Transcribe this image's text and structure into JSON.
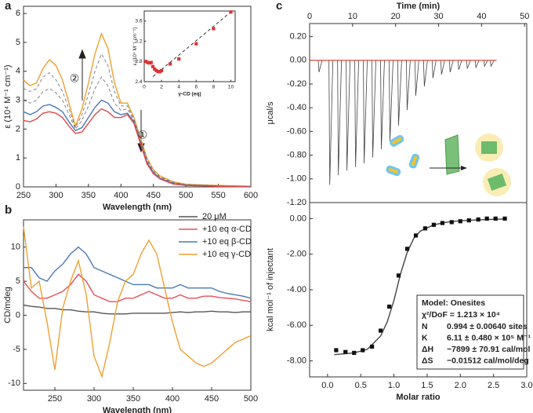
{
  "chart_data": [
    {
      "type": "line",
      "panel_label": "a",
      "xlabel": "Wavelength (nm)",
      "ylabel": "ε (10⁴ M⁻¹ cm⁻¹)",
      "xlim": [
        250,
        600
      ],
      "xticks": [
        250,
        300,
        350,
        400,
        450,
        500,
        550,
        600
      ],
      "ylim": [
        0,
        6.25
      ],
      "yticks": [
        0,
        1,
        2,
        3,
        4,
        5,
        6
      ],
      "annotations": [
        "②",
        "①"
      ],
      "x": [
        250,
        260,
        270,
        280,
        290,
        300,
        310,
        320,
        330,
        340,
        350,
        360,
        370,
        380,
        390,
        400,
        410,
        420,
        430,
        440,
        450,
        460,
        480,
        500,
        550,
        600
      ],
      "series": [
        {
          "color": "#f0a030",
          "dash": false,
          "values": [
            3.7,
            3.5,
            3.6,
            4.1,
            4.4,
            4.2,
            3.7,
            2.9,
            2.1,
            2.7,
            3.6,
            4.6,
            5.3,
            4.8,
            3.6,
            2.9,
            2.9,
            2.4,
            1.7,
            1.0,
            0.6,
            0.38,
            0.18,
            0.09,
            0.05,
            0.02
          ]
        },
        {
          "color": "#777777",
          "dash": true,
          "values": [
            3.4,
            3.3,
            3.4,
            3.8,
            3.95,
            3.7,
            3.3,
            2.7,
            2.05,
            2.5,
            3.2,
            4.0,
            4.6,
            4.2,
            3.3,
            2.8,
            2.8,
            2.35,
            1.65,
            0.95,
            0.55,
            0.35,
            0.16,
            0.08,
            0.04,
            0.01
          ]
        },
        {
          "color": "#777777",
          "dash": true,
          "values": [
            3.0,
            2.9,
            3.0,
            3.3,
            3.4,
            3.25,
            3.0,
            2.5,
            2.0,
            2.3,
            2.8,
            3.4,
            3.8,
            3.5,
            2.9,
            2.65,
            2.7,
            2.3,
            1.6,
            0.9,
            0.5,
            0.32,
            0.14,
            0.07,
            0.03,
            0.01
          ]
        },
        {
          "color": "#4a78b8",
          "dash": false,
          "values": [
            2.6,
            2.5,
            2.6,
            2.8,
            2.85,
            2.75,
            2.6,
            2.25,
            1.95,
            2.05,
            2.4,
            2.75,
            3.0,
            2.9,
            2.6,
            2.5,
            2.55,
            2.25,
            1.55,
            0.85,
            0.5,
            0.3,
            0.12,
            0.06,
            0.03,
            0.01
          ]
        },
        {
          "color": "#e04848",
          "dash": false,
          "values": [
            2.3,
            2.25,
            2.35,
            2.55,
            2.6,
            2.55,
            2.4,
            2.1,
            1.85,
            1.9,
            2.2,
            2.5,
            2.7,
            2.6,
            2.4,
            2.4,
            2.5,
            2.2,
            1.5,
            0.8,
            0.45,
            0.28,
            0.1,
            0.05,
            0.02,
            0
          ]
        }
      ]
    },
    {
      "type": "scatter",
      "xlabel": "γ-CD (eq)",
      "ylabel": "ε (10⁴ M⁻¹ cm⁻¹)",
      "xlim": [
        0,
        10.5
      ],
      "xticks": [
        0,
        2,
        4,
        6,
        8,
        10
      ],
      "ylim": [
        2.4,
        3.8
      ],
      "yticks": [
        2.4,
        2.8,
        3.2,
        3.6
      ],
      "series": [
        {
          "color": "#222222",
          "dash": true,
          "x": [
            1,
            10
          ],
          "values": [
            2.5,
            3.78
          ]
        },
        {
          "color": "#e03030",
          "marker": "square",
          "x": [
            0.2,
            0.4,
            0.6,
            0.8,
            1.0,
            1.2,
            1.4,
            1.6,
            1.8,
            2,
            3,
            4,
            6,
            8,
            10
          ],
          "values": [
            2.8,
            2.78,
            2.77,
            2.78,
            2.7,
            2.65,
            2.62,
            2.6,
            2.6,
            2.62,
            2.75,
            2.85,
            3.15,
            3.45,
            3.78
          ]
        }
      ]
    },
    {
      "type": "line",
      "panel_label": "b",
      "xlabel": "Wavelength (nm)",
      "ylabel": "CD/mdeg",
      "xlim": [
        210,
        500
      ],
      "xticks": [
        250,
        300,
        350,
        400,
        450,
        500
      ],
      "ylim": [
        -11,
        14
      ],
      "yticks": [
        -10,
        -5,
        0,
        5,
        10
      ],
      "legend": "top-right",
      "x": [
        210,
        220,
        230,
        240,
        250,
        260,
        270,
        280,
        290,
        300,
        310,
        320,
        330,
        340,
        350,
        360,
        370,
        380,
        390,
        400,
        410,
        420,
        430,
        440,
        450,
        460,
        470,
        480,
        490,
        500
      ],
      "series": [
        {
          "name": "20 μM",
          "color": "#555555",
          "values": [
            1.5,
            1.3,
            1.2,
            1,
            1,
            0.8,
            0.8,
            0.6,
            0.5,
            0.5,
            0.3,
            0.2,
            0.2,
            0.2,
            0.3,
            0.3,
            0.3,
            0.3,
            0.3,
            0.4,
            0.5,
            0.4,
            0.5,
            0.5,
            0.6,
            0.5,
            0.5,
            0.4,
            0.5,
            0.5
          ]
        },
        {
          "name": "+10 eq α-CD",
          "color": "#e8505a",
          "values": [
            5,
            3.5,
            2.5,
            2.5,
            3,
            3.5,
            4.5,
            6,
            5,
            3,
            2.5,
            2,
            2,
            2.5,
            2.5,
            3,
            3.5,
            3,
            2.5,
            2.5,
            3,
            2.5,
            2.5,
            2.8,
            2.8,
            2.6,
            2.5,
            2.4,
            2.2,
            2
          ]
        },
        {
          "name": "+10 eq β-CD",
          "color": "#4a7ab8",
          "values": [
            7,
            7,
            5.5,
            5,
            6.5,
            7.5,
            9,
            10,
            9,
            7,
            6.5,
            6,
            5.5,
            5,
            4.5,
            4.5,
            4.5,
            4,
            4,
            4,
            4.5,
            4,
            4,
            4,
            4,
            3.5,
            3.2,
            3,
            2.8,
            2.5
          ]
        },
        {
          "name": "+10 eq γ-CD",
          "color": "#f0a030",
          "values": [
            13,
            4,
            5,
            -1,
            -8,
            1,
            5,
            8,
            3,
            -6,
            -9,
            -4,
            2,
            5,
            6,
            9,
            11,
            9,
            4,
            -1,
            -5,
            -6,
            -7,
            -7.5,
            -7,
            -6,
            -5,
            -4,
            -3.5,
            -3
          ]
        }
      ]
    },
    {
      "type": "line",
      "panel_label": "c",
      "xlabel": "Time (min)",
      "ylabel": "μcal/s",
      "x_axis_position": "top",
      "xlim": [
        0,
        50.5
      ],
      "xticks": [
        0,
        10,
        20,
        30,
        40,
        50
      ],
      "ylim": [
        -1.2,
        0.31
      ],
      "yticks": [
        {
          "value": 0.2,
          "label": "0.20"
        },
        {
          "value": 0,
          "label": "0.00"
        },
        {
          "value": -0.2,
          "label": "-0.20"
        },
        {
          "value": -0.4,
          "label": "-0.40"
        },
        {
          "value": -0.6,
          "label": "-0.60"
        },
        {
          "value": -0.8,
          "label": "-0.80"
        },
        {
          "value": -1.0,
          "label": "-1.00"
        },
        {
          "value": -1.2,
          "label": "-1.20"
        }
      ],
      "series": [
        {
          "color": "#444444",
          "style": "spikes",
          "x": [
            2,
            4.5,
            6.5,
            8.5,
            10.5,
            12.5,
            14.5,
            16.5,
            18.5,
            20.5,
            22.5,
            24.5,
            26.5,
            28.5,
            30.5,
            32.5,
            34.5,
            36.5,
            38.5,
            40.5,
            42
          ],
          "values": [
            -0.1,
            -1.05,
            -0.97,
            -0.93,
            -0.9,
            -0.87,
            -0.82,
            -0.75,
            -0.68,
            -0.55,
            -0.42,
            -0.3,
            -0.22,
            -0.15,
            -0.12,
            -0.1,
            -0.08,
            -0.07,
            -0.06,
            -0.05,
            -0.05
          ]
        },
        {
          "color": "#e05a4a",
          "x": [
            0,
            43.5
          ],
          "values": [
            0,
            0
          ]
        }
      ]
    },
    {
      "type": "scatter",
      "xlabel": "Molar ratio",
      "ylabel": "kcal mol⁻¹ of injectant",
      "xlim": [
        -0.27,
        3.0
      ],
      "xticks": [
        {
          "value": 0,
          "label": "0.0"
        },
        {
          "value": 0.5,
          "label": "0.5"
        },
        {
          "value": 1,
          "label": "1.0"
        },
        {
          "value": 1.5,
          "label": "1.5"
        },
        {
          "value": 2,
          "label": "2.0"
        },
        {
          "value": 2.5,
          "label": "2.5"
        },
        {
          "value": 3,
          "label": "3.0"
        }
      ],
      "ylim": [
        -8.9,
        0.9
      ],
      "yticks": [
        {
          "value": 0,
          "label": "0.00"
        },
        {
          "value": -2,
          "label": "-2.00"
        },
        {
          "value": -4,
          "label": "-4.00"
        },
        {
          "value": -6,
          "label": "-6.00"
        },
        {
          "value": -8,
          "label": "-8.00"
        }
      ],
      "fit_box": {
        "title": "Model: Onesites",
        "chi": "χ²/DoF = 1.213 × 10⁴",
        "rows": [
          [
            "N",
            "0.994 ± 0.00640 sites"
          ],
          [
            "K",
            "6.11 ± 0.480 × 10⁵ M⁻¹"
          ],
          [
            "ΔH",
            "−7899 ± 70.91 cal/mol"
          ],
          [
            "ΔS",
            "−0.01512 cal/mol/deg"
          ]
        ]
      },
      "series": [
        {
          "color": "#444444",
          "x": [
            0.1,
            0.4,
            0.6,
            0.8,
            0.9,
            1.0,
            1.1,
            1.2,
            1.3,
            1.4,
            1.6,
            1.8,
            2.0,
            2.4,
            2.7
          ],
          "values": [
            -7.65,
            -7.55,
            -7.35,
            -6.6,
            -5.8,
            -4.6,
            -3.1,
            -1.9,
            -1.1,
            -0.7,
            -0.35,
            -0.2,
            -0.12,
            -0.05,
            -0.02
          ]
        },
        {
          "color": "#111111",
          "marker": "square",
          "x": [
            0.13,
            0.27,
            0.4,
            0.53,
            0.67,
            0.8,
            0.93,
            1.07,
            1.2,
            1.33,
            1.47,
            1.6,
            1.73,
            1.87,
            2.0,
            2.13,
            2.27,
            2.4,
            2.53,
            2.67
          ],
          "values": [
            -7.4,
            -7.5,
            -7.55,
            -7.4,
            -7.2,
            -6.3,
            -4.95,
            -3.2,
            -1.7,
            -0.95,
            -0.55,
            -0.35,
            -0.25,
            -0.2,
            -0.15,
            -0.1,
            -0.05,
            0,
            0,
            0
          ]
        }
      ]
    }
  ]
}
